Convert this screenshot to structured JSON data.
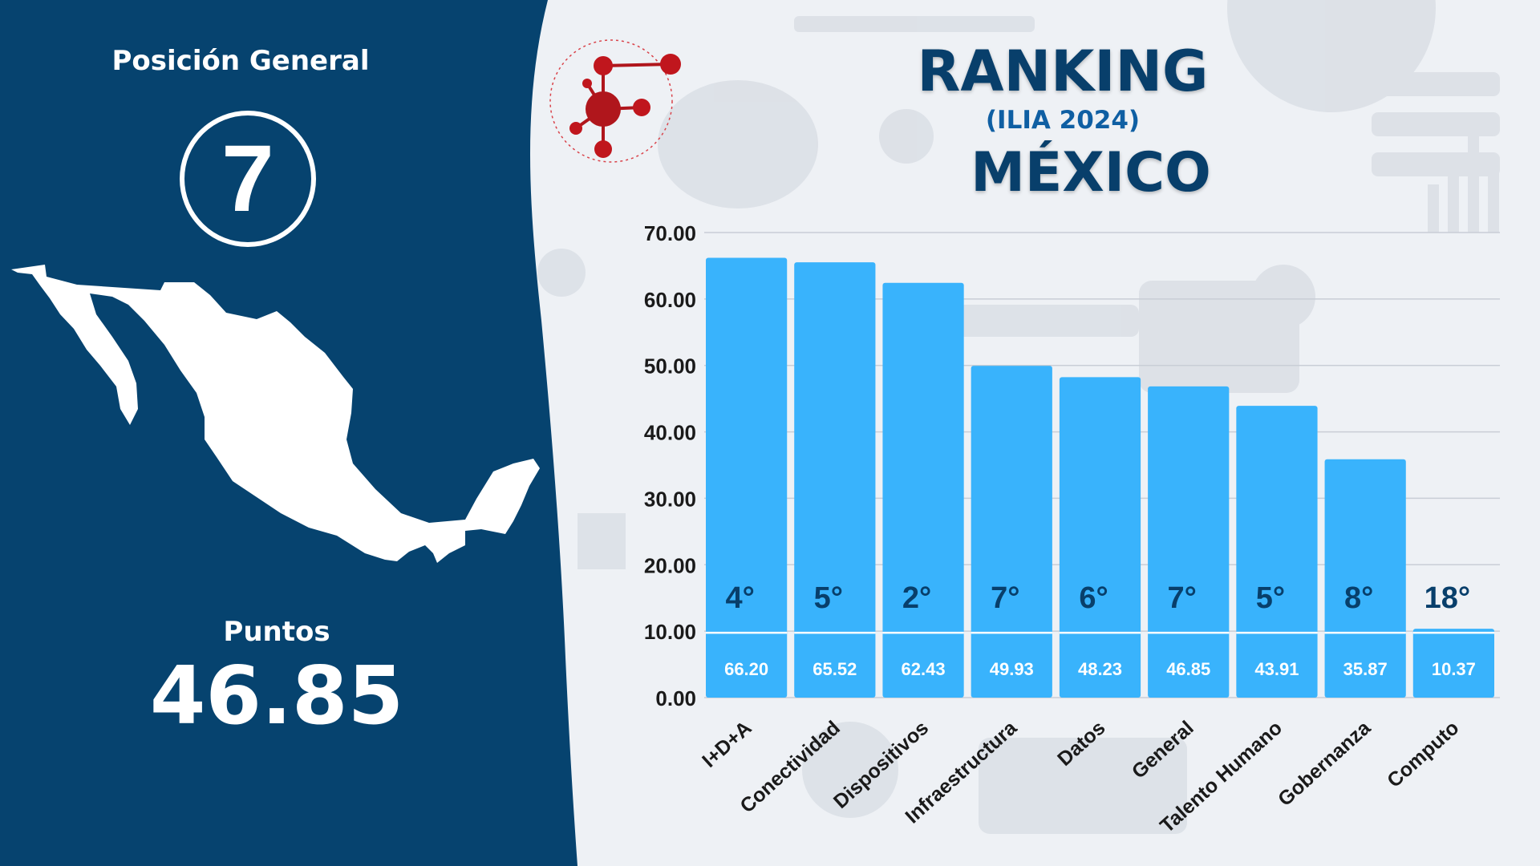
{
  "colors": {
    "panel": "#06436f",
    "bar": "#39b3fc",
    "title": "#083f6b",
    "rank_text": "#083f6b",
    "logo": "#b0161c"
  },
  "icons": [
    "molecule-logo-icon",
    "mexico-map-icon"
  ],
  "left_panel": {
    "position_label": "Posición General",
    "position_value": "7",
    "points_label": "Puntos",
    "points_value": "46.85"
  },
  "title": {
    "main": "RANKING",
    "subtitle": "(ILIA 2024)",
    "country": "MÉXICO"
  },
  "chart_data": {
    "type": "bar",
    "title": "",
    "xlabel": "",
    "ylabel": "",
    "ylim": [
      0,
      70
    ],
    "y_ticks": [
      "0.00",
      "10.00",
      "20.00",
      "30.00",
      "40.00",
      "50.00",
      "60.00",
      "70.00"
    ],
    "grid": true,
    "categories": [
      "I+D+A",
      "Conectividad",
      "Dispositivos",
      "Infraestructura",
      "Datos",
      "General",
      "Talento Humano",
      "Gobernanza",
      "Computo"
    ],
    "values": [
      66.2,
      65.52,
      62.43,
      49.93,
      48.23,
      46.85,
      43.91,
      35.87,
      10.37
    ],
    "value_labels": [
      "66.20",
      "65.52",
      "62.43",
      "49.93",
      "48.23",
      "46.85",
      "43.91",
      "35.87",
      "10.37"
    ],
    "rank_labels": [
      "4°",
      "5°",
      "2°",
      "7°",
      "6°",
      "7°",
      "5°",
      "8°",
      "18°"
    ]
  }
}
